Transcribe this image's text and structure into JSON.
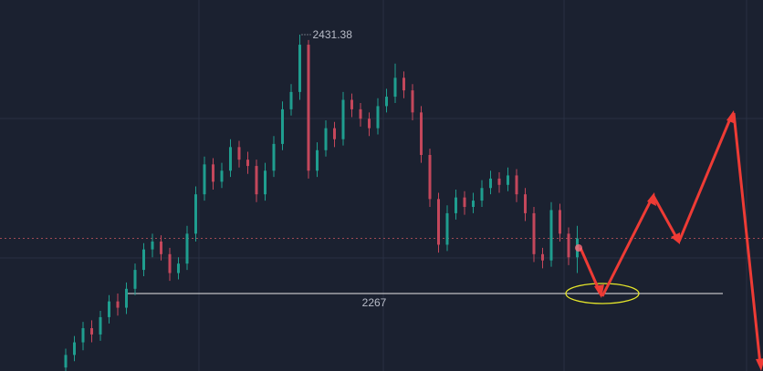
{
  "chart_data": {
    "type": "candlestick",
    "ylim": [
      2217.8,
      2453.4
    ],
    "support": 2267,
    "up_color": "#1f9e8f",
    "down_color": "#c4475b",
    "ohlc": [
      [
        2220,
        2232,
        2214,
        2228
      ],
      [
        2228,
        2240,
        2224,
        2236
      ],
      [
        2236,
        2249,
        2231,
        2245
      ],
      [
        2245,
        2250,
        2236,
        2241
      ],
      [
        2241,
        2256,
        2237,
        2252
      ],
      [
        2252,
        2266,
        2248,
        2262
      ],
      [
        2262,
        2267,
        2253,
        2258
      ],
      [
        2258,
        2274,
        2254,
        2270
      ],
      [
        2270,
        2286,
        2266,
        2282
      ],
      [
        2282,
        2299,
        2278,
        2295
      ],
      [
        2295,
        2305,
        2290,
        2300
      ],
      [
        2300,
        2304,
        2288,
        2292
      ],
      [
        2292,
        2296,
        2275,
        2280
      ],
      [
        2280,
        2290,
        2276,
        2286
      ],
      [
        2286,
        2310,
        2282,
        2305
      ],
      [
        2305,
        2335,
        2300,
        2330
      ],
      [
        2330,
        2354,
        2326,
        2349
      ],
      [
        2349,
        2353,
        2333,
        2338
      ],
      [
        2338,
        2350,
        2334,
        2345
      ],
      [
        2345,
        2365,
        2341,
        2360
      ],
      [
        2360,
        2364,
        2347,
        2352
      ],
      [
        2352,
        2357,
        2343,
        2348
      ],
      [
        2348,
        2352,
        2325,
        2330
      ],
      [
        2330,
        2350,
        2326,
        2345
      ],
      [
        2345,
        2367,
        2341,
        2362
      ],
      [
        2362,
        2389,
        2358,
        2384
      ],
      [
        2384,
        2400,
        2380,
        2395
      ],
      [
        2395,
        2431.38,
        2390,
        2425
      ],
      [
        2425,
        2428,
        2340,
        2345
      ],
      [
        2345,
        2363,
        2341,
        2358
      ],
      [
        2358,
        2377,
        2354,
        2372
      ],
      [
        2372,
        2376,
        2360,
        2365
      ],
      [
        2365,
        2395,
        2361,
        2390
      ],
      [
        2390,
        2394,
        2379,
        2384
      ],
      [
        2384,
        2388,
        2373,
        2378
      ],
      [
        2378,
        2382,
        2367,
        2372
      ],
      [
        2372,
        2391,
        2368,
        2386
      ],
      [
        2386,
        2397,
        2382,
        2392
      ],
      [
        2392,
        2413,
        2388,
        2404
      ],
      [
        2404,
        2408,
        2391,
        2396
      ],
      [
        2396,
        2400,
        2377,
        2382
      ],
      [
        2382,
        2386,
        2350,
        2355
      ],
      [
        2355,
        2359,
        2322,
        2327
      ],
      [
        2327,
        2331,
        2293,
        2298
      ],
      [
        2298,
        2323,
        2294,
        2318
      ],
      [
        2318,
        2333,
        2314,
        2328
      ],
      [
        2328,
        2332,
        2317,
        2322
      ],
      [
        2322,
        2331,
        2318,
        2326
      ],
      [
        2326,
        2339,
        2322,
        2334
      ],
      [
        2334,
        2345,
        2330,
        2340
      ],
      [
        2340,
        2344,
        2331,
        2336
      ],
      [
        2336,
        2347,
        2332,
        2342
      ],
      [
        2342,
        2346,
        2325,
        2330
      ],
      [
        2330,
        2334,
        2313,
        2318
      ],
      [
        2318,
        2322,
        2287,
        2292
      ],
      [
        2292,
        2296,
        2283,
        2288
      ],
      [
        2288,
        2325,
        2284,
        2320
      ],
      [
        2320,
        2324,
        2300,
        2305
      ],
      [
        2305,
        2309,
        2285,
        2290
      ],
      [
        2290,
        2310,
        2280,
        2302
      ]
    ]
  }
}
